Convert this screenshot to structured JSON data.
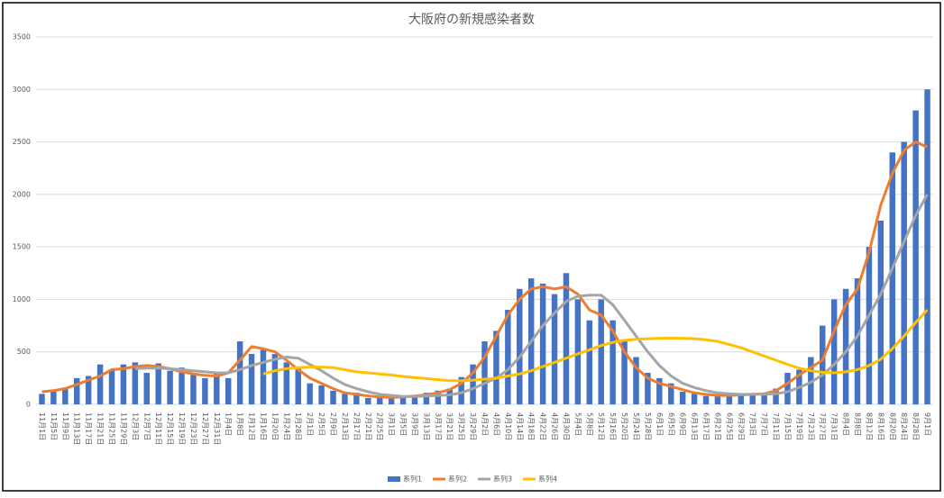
{
  "chart_data": {
    "type": "bar-line",
    "title": "大阪府の新規感染者数",
    "categories": [
      "11月1日",
      "11月5日",
      "11月9日",
      "11月13日",
      "11月17日",
      "11月21日",
      "11月25日",
      "11月29日",
      "12月3日",
      "12月7日",
      "12月11日",
      "12月15日",
      "12月19日",
      "12月23日",
      "12月27日",
      "12月31日",
      "1月4日",
      "1月8日",
      "1月12日",
      "1月16日",
      "1月20日",
      "1月24日",
      "1月28日",
      "2月1日",
      "2月5日",
      "2月9日",
      "2月13日",
      "2月17日",
      "2月21日",
      "2月25日",
      "3月1日",
      "3月5日",
      "3月9日",
      "3月13日",
      "3月17日",
      "3月21日",
      "3月25日",
      "3月29日",
      "4月2日",
      "4月6日",
      "4月10日",
      "4月14日",
      "4月18日",
      "4月22日",
      "4月26日",
      "4月30日",
      "5月4日",
      "5月8日",
      "5月12日",
      "5月16日",
      "5月20日",
      "5月24日",
      "5月28日",
      "6月1日",
      "6月5日",
      "6月9日",
      "6月13日",
      "6月17日",
      "6月21日",
      "6月25日",
      "6月29日",
      "7月3日",
      "7月7日",
      "7月11日",
      "7月15日",
      "7月19日",
      "7月23日",
      "7月27日",
      "7月31日",
      "8月4日",
      "8月8日",
      "8月12日",
      "8月16日",
      "8月20日",
      "8月24日",
      "8月28日",
      "9月1日"
    ],
    "series": [
      {
        "name": "系列1",
        "color": "#4472c4",
        "kind": "bar",
        "values": [
          100,
          120,
          150,
          250,
          270,
          380,
          330,
          380,
          400,
          300,
          390,
          320,
          350,
          280,
          250,
          300,
          250,
          600,
          480,
          520,
          480,
          400,
          350,
          200,
          180,
          130,
          100,
          110,
          60,
          80,
          70,
          80,
          90,
          110,
          130,
          150,
          260,
          380,
          600,
          700,
          900,
          1100,
          1200,
          1150,
          1050,
          1250,
          1000,
          800,
          1000,
          800,
          600,
          450,
          300,
          250,
          200,
          120,
          100,
          80,
          90,
          100,
          90,
          100,
          110,
          150,
          300,
          330,
          450,
          750,
          1000,
          1100,
          1200,
          1500,
          1750,
          2400,
          2500,
          2800,
          3000
        ]
      },
      {
        "name": "系列2",
        "color": "#ed7d31",
        "kind": "line",
        "values": [
          120,
          130,
          150,
          190,
          230,
          270,
          330,
          340,
          360,
          370,
          360,
          340,
          310,
          290,
          275,
          270,
          300,
          420,
          550,
          530,
          500,
          420,
          330,
          250,
          200,
          150,
          110,
          95,
          80,
          70,
          65,
          70,
          80,
          90,
          110,
          140,
          200,
          300,
          450,
          650,
          850,
          1000,
          1100,
          1120,
          1100,
          1120,
          1050,
          900,
          850,
          700,
          500,
          350,
          250,
          200,
          170,
          140,
          110,
          95,
          85,
          85,
          90,
          95,
          100,
          130,
          200,
          280,
          350,
          420,
          700,
          950,
          1100,
          1450,
          1900,
          2200,
          2420,
          2500,
          2450
        ]
      },
      {
        "name": "系列3",
        "color": "#a5a5a5",
        "kind": "line",
        "values": [
          null,
          null,
          null,
          null,
          null,
          null,
          null,
          null,
          340,
          345,
          345,
          340,
          330,
          320,
          310,
          300,
          300,
          330,
          370,
          400,
          430,
          450,
          440,
          380,
          320,
          250,
          190,
          150,
          120,
          95,
          85,
          75,
          75,
          80,
          85,
          90,
          110,
          150,
          200,
          250,
          330,
          450,
          600,
          750,
          870,
          980,
          1030,
          1040,
          1040,
          950,
          800,
          650,
          500,
          370,
          270,
          200,
          160,
          130,
          110,
          100,
          95,
          95,
          95,
          100,
          120,
          160,
          210,
          280,
          380,
          500,
          650,
          850,
          1050,
          1300,
          1550,
          1800,
          2000
        ]
      },
      {
        "name": "系列4",
        "color": "#ffc000",
        "kind": "line",
        "values": [
          null,
          null,
          null,
          null,
          null,
          null,
          null,
          null,
          null,
          null,
          null,
          null,
          null,
          null,
          null,
          null,
          null,
          null,
          null,
          290,
          320,
          340,
          350,
          355,
          355,
          350,
          330,
          310,
          300,
          290,
          280,
          265,
          255,
          245,
          235,
          225,
          225,
          230,
          240,
          250,
          270,
          290,
          320,
          360,
          400,
          440,
          480,
          520,
          560,
          590,
          610,
          620,
          625,
          630,
          630,
          630,
          625,
          615,
          600,
          570,
          540,
          500,
          460,
          420,
          380,
          345,
          320,
          305,
          300,
          310,
          330,
          370,
          430,
          530,
          650,
          780,
          900
        ]
      }
    ],
    "ylim": [
      0,
      3500
    ],
    "yticks": [
      0,
      500,
      1000,
      1500,
      2000,
      2500,
      3000,
      3500
    ],
    "grid": true
  }
}
